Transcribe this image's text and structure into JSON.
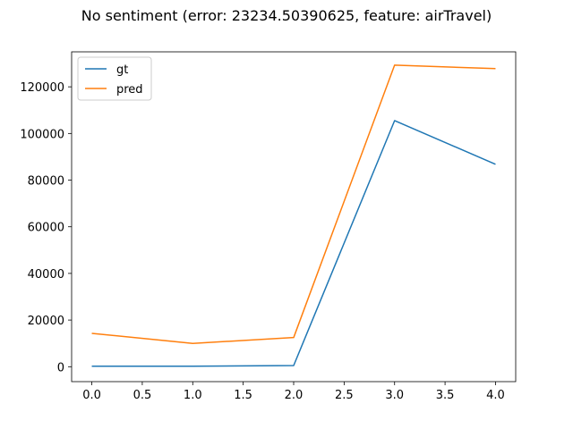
{
  "chart_data": {
    "type": "line",
    "title": "No sentiment (error: 23234.50390625, feature: airTravel)",
    "xlabel": "",
    "ylabel": "",
    "x": [
      0,
      1,
      2,
      3,
      4
    ],
    "xlim": [
      -0.2,
      4.2
    ],
    "ylim": [
      -6400,
      135000
    ],
    "x_ticks": [
      0.0,
      0.5,
      1.0,
      1.5,
      2.0,
      2.5,
      3.0,
      3.5,
      4.0
    ],
    "x_tick_labels": [
      "0.0",
      "0.5",
      "1.0",
      "1.5",
      "2.0",
      "2.5",
      "3.0",
      "3.5",
      "4.0"
    ],
    "y_ticks": [
      0,
      20000,
      40000,
      60000,
      80000,
      100000,
      120000
    ],
    "y_tick_labels": [
      "0",
      "20000",
      "40000",
      "60000",
      "80000",
      "100000",
      "120000"
    ],
    "grid": false,
    "legend_position": "top-left",
    "series": [
      {
        "name": "gt",
        "color": "#1f77b4",
        "values": [
          200,
          200,
          500,
          105500,
          86800
        ]
      },
      {
        "name": "pred",
        "color": "#ff7f0e",
        "values": [
          14300,
          10000,
          12500,
          129300,
          127800
        ]
      }
    ]
  }
}
